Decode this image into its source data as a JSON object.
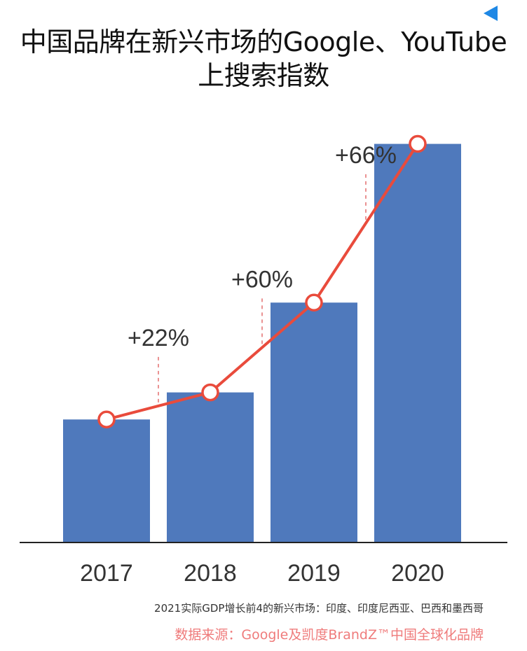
{
  "colors": {
    "bar": "#4f79bc",
    "line": "#e94b3c",
    "marker_fill": "#ffffff",
    "marker_stroke": "#e94b3c",
    "guide": "#e46f6f",
    "axis": "#222222",
    "text": "#333333",
    "source": "#ef7b7b",
    "corner_marker": "#1e88e5"
  },
  "title": {
    "line1": "中国品牌在新兴市场的Google、YouTube",
    "line2": "上搜索指数"
  },
  "footnote": "2021实际GDP增长前4的新兴市场：印度、印度尼西亚、巴西和墨西哥",
  "source": "数据来源：Google及凯度BrandZ™中国全球化品牌",
  "chart_data": {
    "type": "bar",
    "categories": [
      "2017",
      "2018",
      "2019",
      "2020"
    ],
    "values": [
      100,
      122,
      195,
      324
    ],
    "ylim": [
      0,
      330
    ],
    "xlabel": "",
    "ylabel": "",
    "grid": false,
    "growth_labels": [
      "+22%",
      "+60%",
      "+66%"
    ],
    "overlay_line": "connects bar tops with circular markers"
  }
}
